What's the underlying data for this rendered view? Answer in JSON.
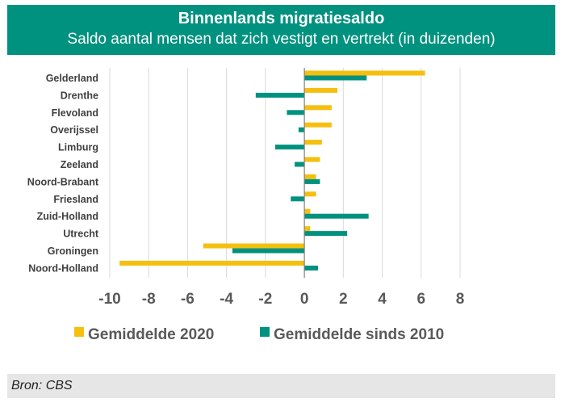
{
  "header": {
    "title": "Binnenlands migratiesaldo",
    "subtitle": "Saldo aantal mensen dat zich vestigt en vertrekt (in duizenden)"
  },
  "footer": {
    "source": "Bron: CBS"
  },
  "colors": {
    "header_bg": "#00927f",
    "series_2020": "#f5bf0f",
    "series_2010": "#00927f",
    "grid": "#d9d9d9",
    "axis_text": "#595959",
    "category_text": "#404040"
  },
  "chart_data": {
    "type": "bar",
    "orientation": "horizontal",
    "title": "Binnenlands migratiesaldo",
    "subtitle": "Saldo aantal mensen dat zich vestigt en vertrekt (in duizenden)",
    "categories": [
      "Gelderland",
      "Drenthe",
      "Flevoland",
      "Overijssel",
      "Limburg",
      "Zeeland",
      "Noord-Brabant",
      "Friesland",
      "Zuid-Holland",
      "Utrecht",
      "Groningen",
      "Noord-Holland"
    ],
    "series": [
      {
        "name": "Gemiddelde 2020",
        "values": [
          6.2,
          1.7,
          1.4,
          1.4,
          0.9,
          0.8,
          0.6,
          0.6,
          0.3,
          0.3,
          -5.2,
          -9.5
        ]
      },
      {
        "name": "Gemiddelde sinds 2010",
        "values": [
          3.2,
          -2.5,
          -0.9,
          -0.3,
          -1.5,
          -0.5,
          0.8,
          -0.7,
          3.3,
          2.2,
          -3.7,
          0.7
        ]
      }
    ],
    "xlim": [
      -10,
      8
    ],
    "xticks": [
      -10,
      -8,
      -6,
      -4,
      -2,
      0,
      2,
      4,
      6,
      8
    ],
    "xlabel": "",
    "ylabel": "",
    "grid": true,
    "legend_position": "bottom"
  }
}
